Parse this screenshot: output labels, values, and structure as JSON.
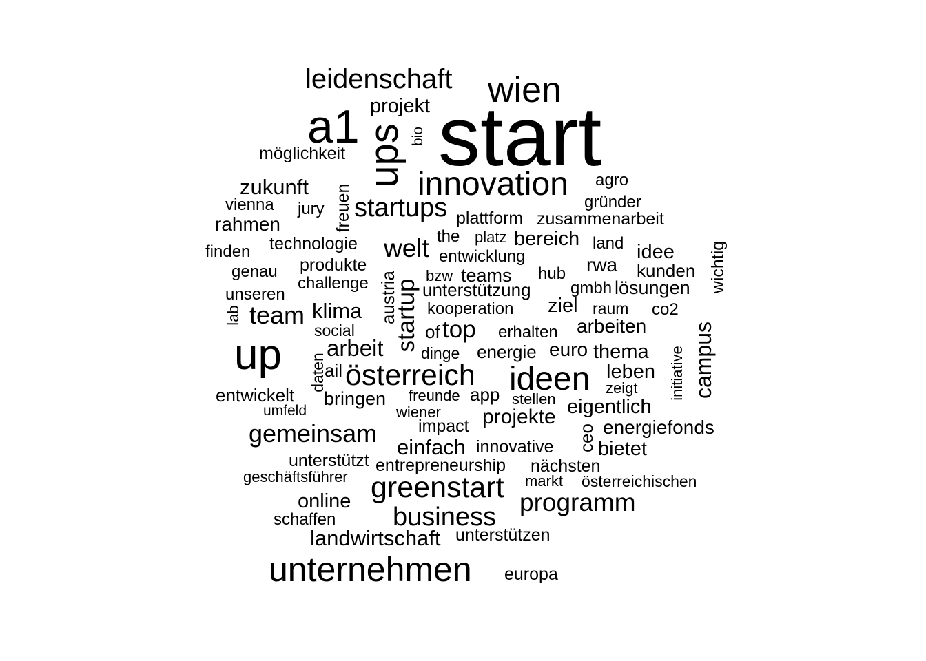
{
  "words": [
    {
      "text": "start"
    },
    {
      "text": "wien"
    },
    {
      "text": "leidenschaft"
    },
    {
      "text": "a1"
    },
    {
      "text": "ups"
    },
    {
      "text": "projekt"
    },
    {
      "text": "bio"
    },
    {
      "text": "möglichkeit"
    },
    {
      "text": "innovation"
    },
    {
      "text": "zukunft"
    },
    {
      "text": "freuen"
    },
    {
      "text": "agro"
    },
    {
      "text": "vienna"
    },
    {
      "text": "jury"
    },
    {
      "text": "startups"
    },
    {
      "text": "gründer"
    },
    {
      "text": "rahmen"
    },
    {
      "text": "plattform"
    },
    {
      "text": "zusammenarbeit"
    },
    {
      "text": "technologie"
    },
    {
      "text": "the"
    },
    {
      "text": "platz"
    },
    {
      "text": "bereich"
    },
    {
      "text": "land"
    },
    {
      "text": "wichtig"
    },
    {
      "text": "finden"
    },
    {
      "text": "welt"
    },
    {
      "text": "entwicklung"
    },
    {
      "text": "idee"
    },
    {
      "text": "produkte"
    },
    {
      "text": "rwa"
    },
    {
      "text": "genau"
    },
    {
      "text": "bzw"
    },
    {
      "text": "teams"
    },
    {
      "text": "hub"
    },
    {
      "text": "kunden"
    },
    {
      "text": "challenge"
    },
    {
      "text": "austria"
    },
    {
      "text": "startup"
    },
    {
      "text": "unterstützung"
    },
    {
      "text": "gmbh"
    },
    {
      "text": "lösungen"
    },
    {
      "text": "unseren"
    },
    {
      "text": "kooperation"
    },
    {
      "text": "ziel"
    },
    {
      "text": "raum"
    },
    {
      "text": "co2"
    },
    {
      "text": "lab"
    },
    {
      "text": "team"
    },
    {
      "text": "klima"
    },
    {
      "text": "social"
    },
    {
      "text": "of"
    },
    {
      "text": "top"
    },
    {
      "text": "erhalten"
    },
    {
      "text": "arbeiten"
    },
    {
      "text": "campus"
    },
    {
      "text": "up"
    },
    {
      "text": "arbeit"
    },
    {
      "text": "dinge"
    },
    {
      "text": "energie"
    },
    {
      "text": "euro"
    },
    {
      "text": "thema"
    },
    {
      "text": "initiative"
    },
    {
      "text": "daten"
    },
    {
      "text": "ail"
    },
    {
      "text": "österreich"
    },
    {
      "text": "ideen"
    },
    {
      "text": "leben"
    },
    {
      "text": "zeigt"
    },
    {
      "text": "entwickelt"
    },
    {
      "text": "bringen"
    },
    {
      "text": "freunde"
    },
    {
      "text": "app"
    },
    {
      "text": "stellen"
    },
    {
      "text": "eigentlich"
    },
    {
      "text": "umfeld"
    },
    {
      "text": "wiener"
    },
    {
      "text": "projekte"
    },
    {
      "text": "impact"
    },
    {
      "text": "energiefonds"
    },
    {
      "text": "gemeinsam"
    },
    {
      "text": "ceo"
    },
    {
      "text": "einfach"
    },
    {
      "text": "innovative"
    },
    {
      "text": "bietet"
    },
    {
      "text": "unterstützt"
    },
    {
      "text": "entrepreneurship"
    },
    {
      "text": "nächsten"
    },
    {
      "text": "geschäftsführer"
    },
    {
      "text": "markt"
    },
    {
      "text": "österreichischen"
    },
    {
      "text": "greenstart"
    },
    {
      "text": "online"
    },
    {
      "text": "programm"
    },
    {
      "text": "schaffen"
    },
    {
      "text": "business"
    },
    {
      "text": "landwirtschaft"
    },
    {
      "text": "unterstützen"
    },
    {
      "text": "unternehmen"
    },
    {
      "text": "europa"
    }
  ]
}
